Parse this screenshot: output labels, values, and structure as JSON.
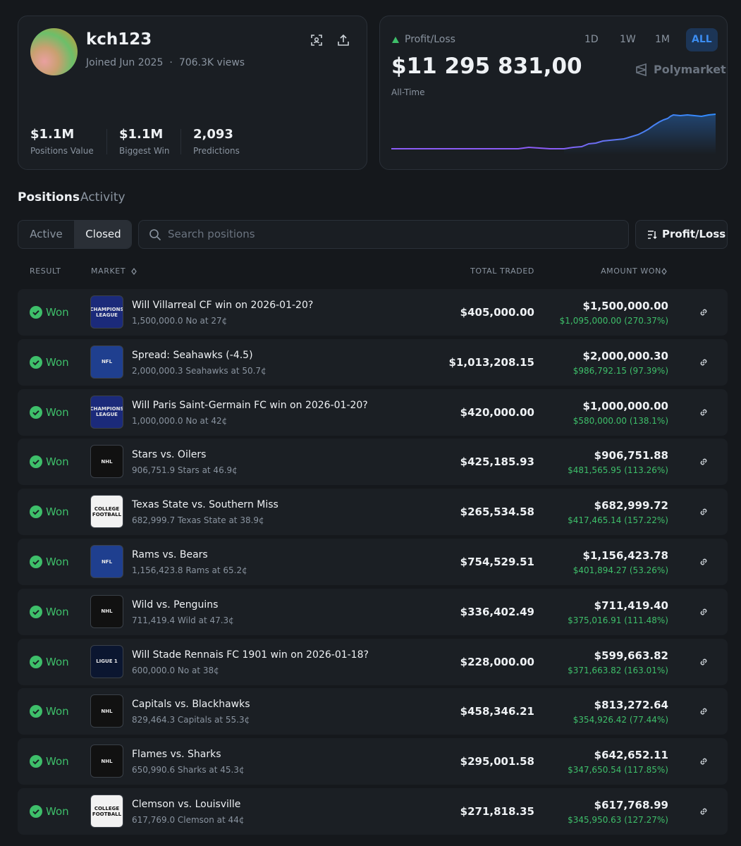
{
  "profile": {
    "username": "kch123",
    "joined": "Joined Jun 2025",
    "views": "706.3K views",
    "stats": [
      {
        "value": "$1.1M",
        "label": "Positions Value"
      },
      {
        "value": "$1.1M",
        "label": "Biggest Win"
      },
      {
        "value": "2,093",
        "label": "Predictions"
      }
    ]
  },
  "pnl": {
    "label": "Profit/Loss",
    "amount": "$11 295 831,00",
    "period": "All-Time",
    "ranges": [
      "1D",
      "1W",
      "1M",
      "ALL"
    ],
    "brand": "Polymarket"
  },
  "tabs": [
    "Positions",
    "Activity"
  ],
  "filters": [
    "Active",
    "Closed"
  ],
  "search_placeholder": "Search positions",
  "sort_button": "Profit/Loss",
  "table": {
    "headers": [
      "RESULT",
      "MARKET",
      "TOTAL TRADED",
      "AMOUNT WON"
    ],
    "rows": [
      {
        "result": "Won",
        "icon": "CHAMPIONS LEAGUE",
        "icon_color": "#1b2a7a",
        "title": "Will Villarreal CF win on 2026-01-20?",
        "detail": "1,500,000.0 No at 27¢",
        "total_traded": "$405,000.00",
        "amount_won": "$1,500,000.00",
        "profit": "$1,095,000.00 (270.37%)"
      },
      {
        "result": "Won",
        "icon": "NFL",
        "icon_color": "#1f3f8f",
        "title": "Spread: Seahawks (-4.5)",
        "detail": "2,000,000.3 Seahawks at 50.7¢",
        "total_traded": "$1,013,208.15",
        "amount_won": "$2,000,000.30",
        "profit": "$986,792.15 (97.39%)"
      },
      {
        "result": "Won",
        "icon": "CHAMPIONS LEAGUE",
        "icon_color": "#1b2a7a",
        "title": "Will Paris Saint-Germain FC win on 2026-01-20?",
        "detail": "1,000,000.0 No at 42¢",
        "total_traded": "$420,000.00",
        "amount_won": "$1,000,000.00",
        "profit": "$580,000.00 (138.1%)"
      },
      {
        "result": "Won",
        "icon": "NHL",
        "icon_color": "#111111",
        "title": "Stars vs. Oilers",
        "detail": "906,751.9 Stars at 46.9¢",
        "total_traded": "$425,185.93",
        "amount_won": "$906,751.88",
        "profit": "$481,565.95 (113.26%)"
      },
      {
        "result": "Won",
        "icon": "COLLEGE FOOTBALL",
        "icon_color": "#f2f2f2",
        "title": "Texas State vs. Southern Miss",
        "detail": "682,999.7 Texas State at 38.9¢",
        "total_traded": "$265,534.58",
        "amount_won": "$682,999.72",
        "profit": "$417,465.14 (157.22%)"
      },
      {
        "result": "Won",
        "icon": "NFL",
        "icon_color": "#1f3f8f",
        "title": "Rams vs. Bears",
        "detail": "1,156,423.8 Rams at 65.2¢",
        "total_traded": "$754,529.51",
        "amount_won": "$1,156,423.78",
        "profit": "$401,894.27 (53.26%)"
      },
      {
        "result": "Won",
        "icon": "NHL",
        "icon_color": "#111111",
        "title": "Wild vs. Penguins",
        "detail": "711,419.4 Wild at 47.3¢",
        "total_traded": "$336,402.49",
        "amount_won": "$711,419.40",
        "profit": "$375,016.91 (111.48%)"
      },
      {
        "result": "Won",
        "icon": "LIGUE 1",
        "icon_color": "#0b1630",
        "title": "Will Stade Rennais FC 1901 win on 2026-01-18?",
        "detail": "600,000.0 No at 38¢",
        "total_traded": "$228,000.00",
        "amount_won": "$599,663.82",
        "profit": "$371,663.82 (163.01%)"
      },
      {
        "result": "Won",
        "icon": "NHL",
        "icon_color": "#111111",
        "title": "Capitals vs. Blackhawks",
        "detail": "829,464.3 Capitals at 55.3¢",
        "total_traded": "$458,346.21",
        "amount_won": "$813,272.64",
        "profit": "$354,926.42 (77.44%)"
      },
      {
        "result": "Won",
        "icon": "NHL",
        "icon_color": "#111111",
        "title": "Flames vs. Sharks",
        "detail": "650,990.6 Sharks at 45.3¢",
        "total_traded": "$295,001.58",
        "amount_won": "$642,652.11",
        "profit": "$347,650.54 (117.85%)"
      },
      {
        "result": "Won",
        "icon": "COLLEGE FOOTBALL",
        "icon_color": "#f2f2f2",
        "title": "Clemson vs. Louisville",
        "detail": "617,769.0 Clemson at 44¢",
        "total_traded": "$271,818.35",
        "amount_won": "$617,768.99",
        "profit": "$345,950.63 (127.27%)"
      }
    ]
  }
}
